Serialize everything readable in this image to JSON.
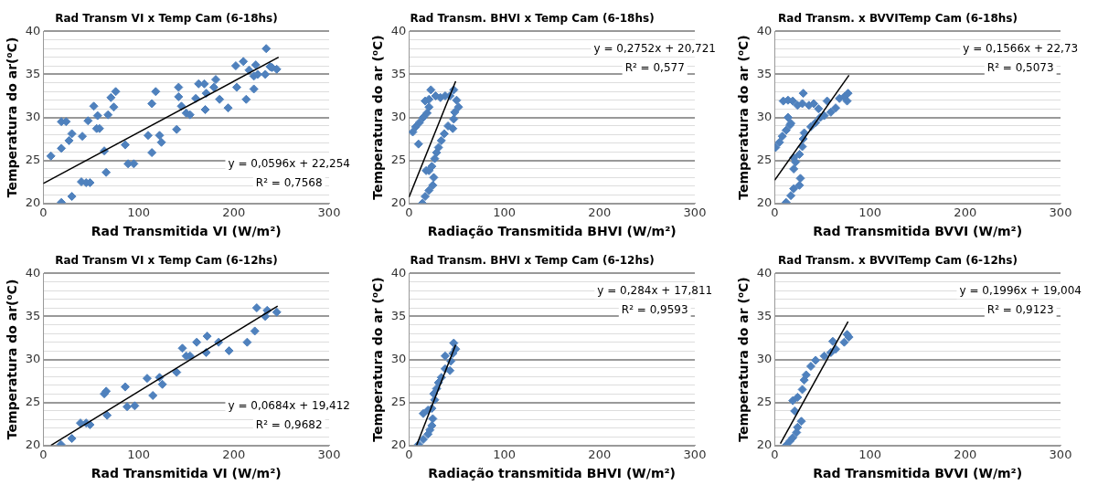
{
  "chart_data": [
    {
      "type": "scatter",
      "title": "Rad Transm VI x Temp Cam (6-18hs)",
      "xlabel": "Rad Transmitida VI (W/m²)",
      "ylabel": "Temperatura do ar(⁰C)",
      "grid": "y",
      "legend": false,
      "xlim": [
        0,
        300
      ],
      "xticks": [
        0,
        100,
        200,
        300
      ],
      "ylim": [
        20,
        40
      ],
      "yticks": [
        20,
        {
          "value": 21,
          "label": null
        },
        {
          "value": 22,
          "label": null
        },
        {
          "value": 23,
          "label": null
        },
        {
          "value": 24,
          "label": null
        },
        25,
        {
          "value": 26,
          "label": null
        },
        {
          "value": 27,
          "label": null
        },
        {
          "value": 28,
          "label": null
        },
        {
          "value": 29,
          "label": null
        },
        30,
        {
          "value": 31,
          "label": null
        },
        {
          "value": 32,
          "label": null
        },
        {
          "value": 33,
          "label": null
        },
        {
          "value": 34,
          "label": null
        },
        35,
        {
          "value": 36,
          "label": null
        },
        {
          "value": 37,
          "label": null
        },
        {
          "value": 38,
          "label": null
        },
        {
          "value": 39,
          "label": null
        },
        40
      ],
      "series": [
        {
          "type": "scatter",
          "color": "#4f81bd",
          "marker": "diamond",
          "x": [
            8,
            19,
            19,
            19,
            24,
            27,
            30,
            30,
            41,
            40,
            45,
            49,
            47,
            53,
            56,
            57,
            59,
            64,
            66,
            68,
            71,
            74,
            76,
            86,
            89,
            95,
            110,
            114,
            114,
            118,
            122,
            124,
            140,
            142,
            142,
            145,
            150,
            154,
            160,
            163,
            169,
            170,
            171,
            181,
            179,
            185,
            194,
            202,
            203,
            210,
            213,
            216,
            221,
            221,
            223,
            225,
            234,
            233,
            238,
            245,
            240
          ],
          "values": [
            25.5,
            20.1,
            26.4,
            29.5,
            29.5,
            27.3,
            28.1,
            20.8,
            27.8,
            22.5,
            22.4,
            22.4,
            29.6,
            31.3,
            28.7,
            30.2,
            28.7,
            26.1,
            23.6,
            30.3,
            32.3,
            31.2,
            33.0,
            26.8,
            24.6,
            24.6,
            27.9,
            25.9,
            31.6,
            33.0,
            27.9,
            27.1,
            28.6,
            33.5,
            32.4,
            31.3,
            30.5,
            30.3,
            32.2,
            33.9,
            33.9,
            30.9,
            32.8,
            34.4,
            33.5,
            32.1,
            31.1,
            36.0,
            33.5,
            36.5,
            32.1,
            35.5,
            33.3,
            34.8,
            36.1,
            35.0,
            38.0,
            35.0,
            35.9,
            35.6,
            35.8
          ]
        },
        {
          "type": "line",
          "color": "#000000",
          "marker": "none",
          "x": [
            0,
            247
          ],
          "values": [
            22.3,
            37.0
          ]
        }
      ],
      "annotations": [
        "y = 0,0596x + 22,254",
        "R² = 0,7568"
      ]
    },
    {
      "type": "scatter",
      "title": "Rad Transm. BHVI x Temp Cam (6-18hs)",
      "xlabel": "Radiação Transmitida BHVI (W/m²)",
      "ylabel": "Temperatura do ar (⁰C)",
      "grid": "y",
      "legend": false,
      "xlim": [
        0,
        300
      ],
      "xticks": [
        0,
        100,
        200,
        300
      ],
      "ylim": [
        20,
        40
      ],
      "yticks": [
        20,
        {
          "value": 21,
          "label": null
        },
        {
          "value": 22,
          "label": null
        },
        {
          "value": 23,
          "label": null
        },
        {
          "value": 24,
          "label": null
        },
        25,
        {
          "value": 26,
          "label": null
        },
        {
          "value": 27,
          "label": null
        },
        {
          "value": 28,
          "label": null
        },
        {
          "value": 29,
          "label": null
        },
        30,
        {
          "value": 31,
          "label": null
        },
        {
          "value": 32,
          "label": null
        },
        {
          "value": 33,
          "label": null
        },
        {
          "value": 34,
          "label": null
        },
        35,
        {
          "value": 36,
          "label": null
        },
        {
          "value": 37,
          "label": null
        },
        {
          "value": 38,
          "label": null
        },
        {
          "value": 39,
          "label": null
        },
        40
      ],
      "series": [
        {
          "type": "scatter",
          "color": "#4f81bd",
          "marker": "diamond",
          "x": [
            4,
            7,
            11,
            15,
            19,
            21,
            17,
            21,
            23,
            28,
            33,
            38,
            43,
            47,
            50,
            52,
            48,
            47,
            46,
            41,
            37,
            34,
            31,
            29,
            27,
            24,
            21,
            18,
            26,
            25,
            21,
            17,
            14,
            10
          ],
          "values": [
            28.3,
            28.9,
            29.4,
            30.0,
            30.5,
            31.2,
            31.9,
            32.1,
            33.2,
            32.5,
            32.3,
            32.5,
            32.5,
            33.2,
            32.0,
            31.2,
            30.6,
            29.8,
            28.7,
            29.0,
            28.1,
            27.3,
            26.5,
            25.9,
            25.2,
            24.3,
            23.8,
            23.8,
            23.0,
            22.1,
            21.5,
            20.8,
            20.0,
            26.9
          ]
        },
        {
          "type": "line",
          "color": "#000000",
          "marker": "none",
          "x": [
            0,
            49
          ],
          "values": [
            20.7,
            34.2
          ]
        }
      ],
      "annotations": [
        "y = 0,2752x + 20,721",
        "R² = 0,577"
      ]
    },
    {
      "type": "scatter",
      "title": "Rad Transm. x BVVITemp Cam (6-18hs)",
      "xlabel": "Rad Transmitida BVVI (W/m²)",
      "ylabel": "Temperatura do ar (⁰C)",
      "grid": "y",
      "legend": false,
      "xlim": [
        0,
        300
      ],
      "xticks": [
        0,
        100,
        200,
        300
      ],
      "ylim": [
        20,
        40
      ],
      "yticks": [
        20,
        {
          "value": 21,
          "label": null
        },
        {
          "value": 22,
          "label": null
        },
        {
          "value": 23,
          "label": null
        },
        {
          "value": 24,
          "label": null
        },
        25,
        {
          "value": 26,
          "label": null
        },
        {
          "value": 27,
          "label": null
        },
        {
          "value": 28,
          "label": null
        },
        {
          "value": 29,
          "label": null
        },
        30,
        {
          "value": 31,
          "label": null
        },
        {
          "value": 32,
          "label": null
        },
        {
          "value": 33,
          "label": null
        },
        {
          "value": 34,
          "label": null
        },
        35,
        {
          "value": 36,
          "label": null
        },
        {
          "value": 37,
          "label": null
        },
        {
          "value": 38,
          "label": null
        },
        {
          "value": 39,
          "label": null
        },
        40
      ],
      "series": [
        {
          "type": "scatter",
          "color": "#4f81bd",
          "marker": "diamond",
          "x": [
            1,
            5,
            8,
            12,
            16,
            14,
            17,
            9,
            14,
            19,
            24,
            29,
            30,
            36,
            41,
            46,
            52,
            59,
            55,
            64,
            68,
            73,
            76,
            77,
            48,
            43,
            38,
            31,
            30,
            29,
            26,
            20,
            22,
            20,
            27,
            26,
            20,
            17,
            12
          ],
          "values": [
            26.5,
            27.1,
            27.8,
            28.5,
            29.1,
            30.0,
            29.3,
            31.9,
            32.0,
            31.9,
            31.4,
            31.6,
            32.8,
            31.4,
            31.6,
            31.0,
            30.2,
            30.6,
            31.9,
            31.1,
            32.2,
            32.4,
            31.9,
            32.8,
            30.0,
            29.4,
            28.9,
            28.2,
            27.5,
            26.6,
            25.7,
            25.3,
            24.8,
            24.0,
            22.9,
            22.1,
            21.7,
            20.9,
            20.1
          ]
        },
        {
          "type": "line",
          "color": "#000000",
          "marker": "none",
          "x": [
            0,
            78
          ],
          "values": [
            22.7,
            34.9
          ]
        }
      ],
      "annotations": [
        "y = 0,1566x + 22,73",
        "R² = 0,5073"
      ]
    },
    {
      "type": "scatter",
      "title": "Rad Transm VI x Temp Cam (6-12hs)",
      "xlabel": "Rad Transmitida VI (W/m²)",
      "ylabel": "Temperatura do ar(⁰C)",
      "grid": "y",
      "legend": false,
      "xlim": [
        0,
        300
      ],
      "xticks": [
        0,
        100,
        200,
        300
      ],
      "ylim": [
        20,
        40
      ],
      "yticks": [
        20,
        {
          "value": 21,
          "label": null
        },
        {
          "value": 22,
          "label": null
        },
        {
          "value": 23,
          "label": null
        },
        {
          "value": 24,
          "label": null
        },
        25,
        {
          "value": 26,
          "label": null
        },
        {
          "value": 27,
          "label": null
        },
        {
          "value": 28,
          "label": null
        },
        {
          "value": 29,
          "label": null
        },
        30,
        {
          "value": 31,
          "label": null
        },
        {
          "value": 32,
          "label": null
        },
        {
          "value": 33,
          "label": null
        },
        {
          "value": 34,
          "label": null
        },
        35,
        {
          "value": 36,
          "label": null
        },
        {
          "value": 37,
          "label": null
        },
        {
          "value": 38,
          "label": null
        },
        {
          "value": 39,
          "label": null
        },
        40
      ],
      "series": [
        {
          "type": "scatter",
          "color": "#4f81bd",
          "marker": "diamond",
          "x": [
            18.5,
            30,
            39,
            45,
            49,
            64,
            66,
            67,
            86,
            88,
            96,
            109,
            115,
            122,
            125,
            140,
            146,
            150,
            154,
            161,
            171,
            172,
            184,
            195,
            214,
            222,
            224,
            233,
            235,
            245
          ],
          "values": [
            20.1,
            20.8,
            22.6,
            22.6,
            22.4,
            26.0,
            26.3,
            23.5,
            26.8,
            24.5,
            24.6,
            27.8,
            25.8,
            27.9,
            27.1,
            28.5,
            31.3,
            30.4,
            30.4,
            32.0,
            30.8,
            32.7,
            32.0,
            31.0,
            32.0,
            33.3,
            36.0,
            35.0,
            35.7,
            35.5
          ]
        },
        {
          "type": "line",
          "color": "#000000",
          "marker": "none",
          "x": [
            8,
            246
          ],
          "values": [
            20.0,
            36.2
          ]
        }
      ],
      "annotations": [
        "y = 0,0684x + 19,412",
        "R² = 0,9682"
      ]
    },
    {
      "type": "scatter",
      "title": "Rad Transm. BHVI x Temp Cam (6-12hs)",
      "xlabel": "Radiação transmitida BHVI (W/m²)",
      "ylabel": "Temperatura do ar (⁰C)",
      "grid": "y",
      "legend": false,
      "xlim": [
        0,
        300
      ],
      "xticks": [
        0,
        100,
        200,
        300
      ],
      "ylim": [
        20,
        40
      ],
      "yticks": [
        20,
        {
          "value": 21,
          "label": null
        },
        {
          "value": 22,
          "label": null
        },
        {
          "value": 23,
          "label": null
        },
        {
          "value": 24,
          "label": null
        },
        25,
        {
          "value": 26,
          "label": null
        },
        {
          "value": 27,
          "label": null
        },
        {
          "value": 28,
          "label": null
        },
        {
          "value": 29,
          "label": null
        },
        30,
        {
          "value": 31,
          "label": null
        },
        {
          "value": 32,
          "label": null
        },
        {
          "value": 33,
          "label": null
        },
        {
          "value": 34,
          "label": null
        },
        35,
        {
          "value": 36,
          "label": null
        },
        {
          "value": 37,
          "label": null
        },
        {
          "value": 38,
          "label": null
        },
        {
          "value": 39,
          "label": null
        },
        40
      ],
      "series": [
        {
          "type": "scatter",
          "color": "#4f81bd",
          "marker": "diamond",
          "x": [
            10,
            15,
            20,
            22,
            24,
            25,
            24,
            20,
            15,
            27,
            26,
            29,
            31,
            34,
            38,
            43,
            38,
            44,
            46,
            49,
            47
          ],
          "values": [
            20.1,
            20.7,
            21.3,
            21.8,
            22.3,
            23.1,
            24.3,
            24.1,
            23.7,
            25.3,
            26.0,
            26.6,
            27.3,
            27.9,
            28.9,
            28.7,
            30.4,
            29.8,
            30.7,
            31.2,
            31.9
          ]
        },
        {
          "type": "line",
          "color": "#000000",
          "marker": "none",
          "x": [
            8,
            49
          ],
          "values": [
            20.0,
            31.7
          ]
        }
      ],
      "annotations": [
        "y = 0,284x + 17,811",
        "R² = 0,9593"
      ]
    },
    {
      "type": "scatter",
      "title": "Rad Transm. x BVVITemp Cam (6-12hs)",
      "xlabel": "Rad Transmitida BVVI (W/m²)",
      "ylabel": "Temperatura do ar (⁰C)",
      "grid": "y",
      "legend": false,
      "xlim": [
        0,
        300
      ],
      "xticks": [
        0,
        100,
        200,
        300
      ],
      "ylim": [
        20,
        40
      ],
      "yticks": [
        20,
        {
          "value": 21,
          "label": null
        },
        {
          "value": 22,
          "label": null
        },
        {
          "value": 23,
          "label": null
        },
        {
          "value": 24,
          "label": null
        },
        25,
        {
          "value": 26,
          "label": null
        },
        {
          "value": 27,
          "label": null
        },
        {
          "value": 28,
          "label": null
        },
        {
          "value": 29,
          "label": null
        },
        30,
        {
          "value": 31,
          "label": null
        },
        {
          "value": 32,
          "label": null
        },
        {
          "value": 33,
          "label": null
        },
        {
          "value": 34,
          "label": null
        },
        35,
        {
          "value": 36,
          "label": null
        },
        {
          "value": 37,
          "label": null
        },
        {
          "value": 38,
          "label": null
        },
        {
          "value": 39,
          "label": null
        },
        40
      ],
      "series": [
        {
          "type": "scatter",
          "color": "#4f81bd",
          "marker": "diamond",
          "x": [
            12,
            16,
            19,
            23,
            24,
            28,
            21,
            19,
            24,
            29,
            31,
            33,
            38,
            43,
            52,
            59,
            64,
            61,
            73,
            78,
            76
          ],
          "values": [
            20.0,
            20.5,
            20.9,
            21.5,
            22.1,
            22.8,
            24.0,
            25.2,
            25.6,
            26.5,
            27.6,
            28.2,
            29.2,
            29.9,
            30.4,
            30.8,
            31.2,
            32.1,
            32.0,
            32.6,
            32.9
          ]
        },
        {
          "type": "line",
          "color": "#000000",
          "marker": "none",
          "x": [
            6,
            77
          ],
          "values": [
            20.2,
            34.4
          ]
        }
      ],
      "annotations": [
        "y = 0,1996x + 19,004",
        "R² = 0,9123"
      ]
    }
  ]
}
